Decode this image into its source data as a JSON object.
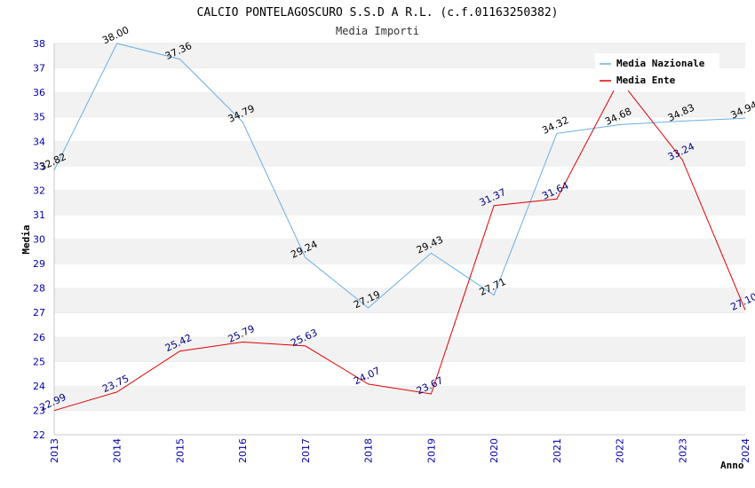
{
  "chart_data": {
    "type": "line",
    "title": "CALCIO PONTELAGOSCURO S.S.D A R.L. (c.f.01163250382)",
    "subtitle": "Media Importi",
    "xlabel": "Anno",
    "ylabel": "Media",
    "x": [
      "2013",
      "2014",
      "2015",
      "2016",
      "2017",
      "2018",
      "2019",
      "2020",
      "2021",
      "2022",
      "2023",
      "2024"
    ],
    "ylim": [
      22,
      38
    ],
    "yticks": [
      22,
      23,
      24,
      25,
      26,
      27,
      28,
      29,
      30,
      31,
      32,
      33,
      34,
      35,
      36,
      37,
      38
    ],
    "grid": "horizontal banded",
    "legend_position": "top-right",
    "series": [
      {
        "name": "Media Nazionale",
        "color": "#6aaee6",
        "values": [
          32.82,
          38.0,
          37.36,
          34.79,
          29.24,
          27.19,
          29.43,
          27.71,
          34.32,
          34.68,
          34.83,
          34.94
        ],
        "labels": [
          "32.82",
          "38.00",
          "37.36",
          "34.79",
          "29.24",
          "27.19",
          "29.43",
          "27.71",
          "34.32",
          "34.68",
          "34.83",
          "34.94"
        ]
      },
      {
        "name": "Media Ente",
        "color": "#e00000",
        "values": [
          22.99,
          23.75,
          25.42,
          25.79,
          25.63,
          24.07,
          23.67,
          31.37,
          31.64,
          36.52,
          33.24,
          27.1
        ],
        "labels": [
          "22.99",
          "23.75",
          "25.42",
          "25.79",
          "25.63",
          "24.07",
          "23.67",
          "31.37",
          "31.64",
          "",
          "33.24",
          "27.10"
        ]
      }
    ]
  }
}
